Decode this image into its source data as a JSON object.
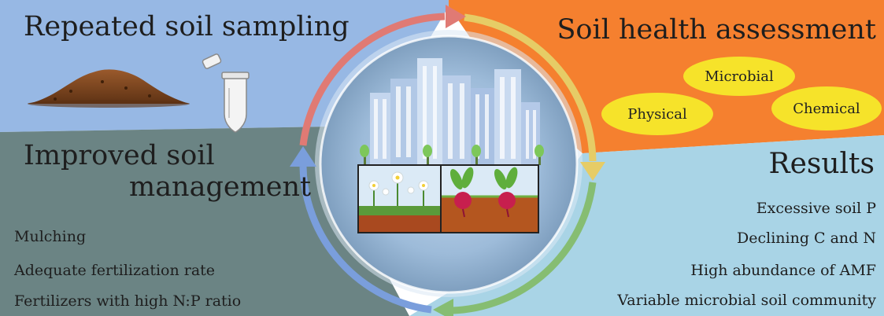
{
  "quadrants": {
    "top_left": {
      "title": "Repeated soil sampling"
    },
    "top_right": {
      "title": "Soil health assessment",
      "ovals": [
        "Microbial",
        "Physical",
        "Chemical"
      ]
    },
    "bottom_left": {
      "title_line1": "Improved soil",
      "title_line2": "management",
      "items": [
        "Mulching",
        "Adequate fertilization rate",
        "Fertilizers with high N:P ratio"
      ]
    },
    "bottom_right": {
      "title": "Results",
      "items": [
        "Excessive soil P",
        "Declining C and N",
        "High abundance of AMF",
        "Variable microbial soil community"
      ]
    }
  },
  "colors": {
    "top_left_bg": "#97b8e4",
    "top_right_bg": "#f5802f",
    "bottom_left_bg": "#6b8484",
    "bottom_right_bg": "#a9d4e6",
    "oval": "#f6e32a",
    "arrow_red": "#e07a74",
    "arrow_yellow": "#e6cc66",
    "arrow_green": "#86bd72",
    "arrow_blue": "#7a9edc"
  },
  "icons": [
    "soil-pile-icon",
    "sample-tube-icon",
    "city-skyline-icon",
    "flowers-icon",
    "beets-icon"
  ]
}
